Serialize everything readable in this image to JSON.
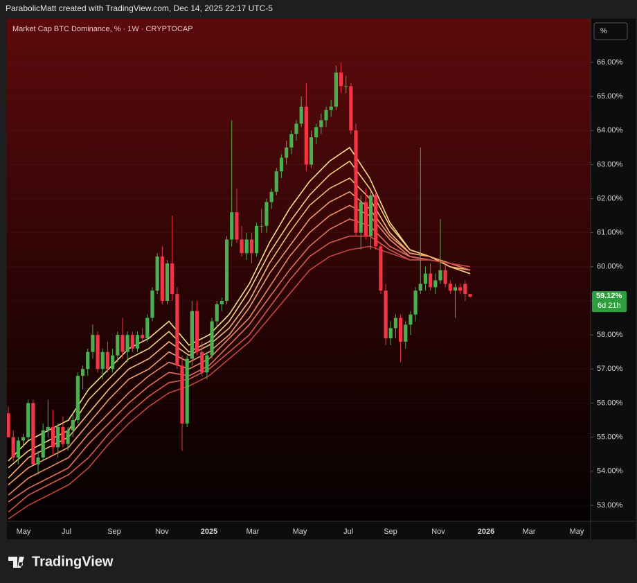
{
  "header": "ParabolicMatt created with TradingView.com, Dec 14, 2025 22:17 UTC-5",
  "footer_brand": "TradingView",
  "chart_data": {
    "type": "candlestick",
    "title": "Market Cap BTC Dominance, % · 1W · CRYPTOCAP",
    "scale_button": "%",
    "ylim": [
      52.53,
      67.28
    ],
    "yticks": [
      {
        "value": 53,
        "label": "53.00%"
      },
      {
        "value": 54,
        "label": "54.00%"
      },
      {
        "value": 55,
        "label": "55.00%"
      },
      {
        "value": 56,
        "label": "56.00%"
      },
      {
        "value": 57,
        "label": "57.00%"
      },
      {
        "value": 58,
        "label": "58.00%"
      },
      {
        "value": 59,
        "label": "59.00%"
      },
      {
        "value": 60,
        "label": "60.00%"
      },
      {
        "value": 61,
        "label": "61.00%"
      },
      {
        "value": 62,
        "label": "62.00%"
      },
      {
        "value": 63,
        "label": "63.00%"
      },
      {
        "value": 64,
        "label": "64.00%"
      },
      {
        "value": 65,
        "label": "65.00%"
      },
      {
        "value": 66,
        "label": "66.00%"
      }
    ],
    "xticks": [
      "May",
      "Jul",
      "Sep",
      "Nov",
      "2025",
      "Mar",
      "May",
      "Jul",
      "Sep",
      "Nov",
      "2026",
      "Mar",
      "May"
    ],
    "grid": true,
    "up_color": "#4caf50",
    "down_color": "#f23645",
    "last_price": {
      "value": 59.12,
      "label": "59.12%"
    },
    "countdown": "6d 21h",
    "open": [
      55.7,
      55.0,
      54.4,
      54.9,
      55.0,
      56.0,
      54.2,
      54.4,
      55.2,
      55.3,
      54.7,
      55.3,
      54.8,
      55.2,
      55.5,
      56.8,
      57.0,
      57.5,
      58.0,
      57.0,
      57.5,
      57.0,
      57.4,
      58.0,
      57.5,
      58.0,
      57.6,
      58.0,
      57.9,
      58.5,
      59.3,
      60.3,
      59.0,
      60.1,
      59.2,
      57.1,
      55.4,
      57.3,
      58.7,
      57.5,
      56.9,
      57.4,
      58.4,
      58.9,
      59.0,
      60.8,
      61.6,
      60.8,
      60.4,
      60.8,
      60.4,
      61.2,
      61.2,
      61.9,
      62.2,
      62.8,
      63.2,
      63.5,
      63.9,
      64.2,
      64.7,
      63.0,
      63.8,
      64.1,
      64.3,
      64.6,
      64.7,
      65.7,
      65.3,
      65.3,
      64.0,
      61.0,
      61.9,
      60.9,
      62.1,
      60.6,
      59.3,
      57.9,
      58.2,
      58.5,
      57.8,
      58.3,
      58.6,
      59.3,
      59.5,
      59.8,
      59.4,
      59.6,
      59.9,
      59.5,
      59.3,
      59.4,
      59.5,
      59.2
    ],
    "high": [
      55.9,
      55.2,
      55.0,
      55.1,
      56.1,
      56.1,
      54.6,
      55.4,
      56.1,
      55.8,
      55.4,
      55.6,
      55.3,
      55.7,
      56.9,
      57.1,
      57.6,
      58.3,
      58.1,
      57.6,
      57.8,
      57.6,
      58.1,
      58.5,
      58.1,
      58.1,
      58.1,
      58.2,
      58.6,
      59.4,
      60.4,
      60.6,
      60.2,
      61.5,
      59.4,
      57.4,
      57.4,
      59.0,
      59.0,
      57.8,
      57.5,
      58.5,
      59.0,
      59.1,
      60.9,
      64.3,
      62.3,
      61.2,
      61.0,
      61.0,
      61.3,
      61.7,
      62.0,
      62.3,
      62.9,
      63.3,
      63.7,
      64.0,
      64.3,
      65.0,
      65.4,
      64.0,
      64.2,
      64.5,
      64.7,
      64.9,
      65.9,
      66.0,
      65.6,
      65.4,
      64.2,
      62.1,
      62.3,
      62.2,
      62.2,
      60.7,
      59.5,
      58.4,
      58.6,
      58.6,
      58.4,
      58.7,
      59.4,
      63.5,
      60.0,
      60.1,
      59.8,
      61.4,
      60.1,
      59.6,
      59.5,
      59.5,
      59.6,
      59.2
    ],
    "low": [
      55.0,
      54.3,
      54.2,
      54.7,
      54.9,
      54.2,
      53.9,
      54.3,
      55.0,
      54.5,
      54.4,
      54.7,
      54.6,
      55.0,
      55.4,
      56.4,
      56.8,
      57.3,
      56.9,
      56.7,
      56.9,
      56.9,
      57.2,
      57.3,
      57.2,
      57.5,
      57.5,
      57.8,
      57.8,
      58.4,
      59.2,
      58.9,
      58.9,
      59.0,
      57.0,
      54.6,
      55.3,
      57.1,
      57.4,
      56.8,
      56.7,
      57.3,
      58.2,
      58.7,
      58.9,
      60.6,
      60.7,
      60.3,
      60.2,
      60.1,
      60.3,
      61.0,
      61.0,
      61.7,
      62.1,
      62.6,
      63.0,
      63.3,
      63.7,
      64.1,
      62.8,
      62.9,
      63.6,
      63.9,
      64.1,
      64.4,
      64.6,
      65.1,
      65.1,
      63.9,
      60.9,
      60.5,
      60.8,
      60.5,
      60.5,
      59.2,
      57.7,
      57.7,
      57.9,
      57.2,
      57.6,
      58.0,
      58.4,
      59.2,
      59.3,
      59.3,
      59.2,
      59.5,
      59.4,
      59.2,
      58.5,
      59.2,
      59.0,
      59.1
    ],
    "close": [
      55.0,
      54.4,
      54.9,
      55.0,
      56.0,
      54.2,
      54.4,
      55.2,
      55.3,
      54.7,
      55.3,
      54.8,
      55.2,
      55.5,
      56.8,
      57.0,
      57.5,
      58.0,
      57.0,
      57.5,
      57.0,
      57.4,
      58.0,
      57.5,
      58.0,
      57.6,
      58.0,
      57.9,
      58.5,
      59.3,
      60.3,
      59.0,
      60.1,
      59.2,
      57.1,
      55.4,
      57.3,
      58.7,
      57.5,
      56.9,
      57.4,
      58.4,
      58.9,
      59.0,
      60.8,
      61.6,
      60.8,
      60.4,
      60.8,
      60.4,
      61.2,
      61.2,
      61.9,
      62.2,
      62.8,
      63.2,
      63.5,
      63.9,
      64.2,
      64.7,
      63.0,
      63.8,
      64.1,
      64.3,
      64.6,
      64.7,
      65.7,
      65.3,
      65.3,
      64.0,
      61.0,
      61.9,
      60.9,
      62.1,
      60.6,
      59.3,
      57.9,
      58.2,
      58.5,
      57.8,
      58.3,
      58.6,
      59.3,
      59.5,
      59.8,
      59.4,
      59.6,
      59.9,
      59.5,
      59.3,
      59.4,
      59.3,
      59.2,
      59.12
    ],
    "ribbon": [
      {
        "color": "#f7e08c",
        "values": [
          54.3,
          54.9,
          55.2,
          55.5,
          56.4,
          57.0,
          57.6,
          57.9,
          58.4,
          57.7,
          58.0,
          58.6,
          59.5,
          60.7,
          61.7,
          62.5,
          63.1,
          63.5,
          62.6,
          61.3,
          60.5,
          60.3,
          60.0,
          59.8
        ]
      },
      {
        "color": "#f7d080",
        "values": [
          54.1,
          54.6,
          54.9,
          55.2,
          56.1,
          56.7,
          57.3,
          57.6,
          58.1,
          57.5,
          57.8,
          58.4,
          59.3,
          60.4,
          61.3,
          62.1,
          62.7,
          63.1,
          62.3,
          61.2,
          60.5,
          60.3,
          60.0,
          59.8
        ]
      },
      {
        "color": "#f5b978",
        "values": [
          53.8,
          54.4,
          54.7,
          55.0,
          55.7,
          56.4,
          57.0,
          57.3,
          57.8,
          57.4,
          57.7,
          58.2,
          59.0,
          60.1,
          61.0,
          61.8,
          62.3,
          62.6,
          62.0,
          61.0,
          60.4,
          60.3,
          60.0,
          59.9
        ]
      },
      {
        "color": "#f2a070",
        "values": [
          53.6,
          54.1,
          54.4,
          54.7,
          55.4,
          56.1,
          56.7,
          57.0,
          57.5,
          57.2,
          57.5,
          58.0,
          58.8,
          59.8,
          60.6,
          61.4,
          61.9,
          62.2,
          61.7,
          60.9,
          60.4,
          60.3,
          60.1,
          59.9
        ]
      },
      {
        "color": "#ec8868",
        "values": [
          53.3,
          53.8,
          54.1,
          54.4,
          55.1,
          55.7,
          56.3,
          56.8,
          57.2,
          57.0,
          57.3,
          57.9,
          58.5,
          59.4,
          60.3,
          61.0,
          61.5,
          61.8,
          61.5,
          60.8,
          60.3,
          60.2,
          60.1,
          59.9
        ]
      },
      {
        "color": "#e2705e",
        "values": [
          53.1,
          53.5,
          53.8,
          54.1,
          54.8,
          55.4,
          56.0,
          56.5,
          56.9,
          56.8,
          57.1,
          57.7,
          58.3,
          59.1,
          59.9,
          60.6,
          61.1,
          61.4,
          61.2,
          60.6,
          60.3,
          60.2,
          60.1,
          59.9
        ]
      },
      {
        "color": "#d65a50",
        "values": [
          52.8,
          53.3,
          53.6,
          53.9,
          54.4,
          55.1,
          55.7,
          56.2,
          56.6,
          56.7,
          57.0,
          57.5,
          58.0,
          58.8,
          59.6,
          60.3,
          60.7,
          60.9,
          60.9,
          60.5,
          60.2,
          60.2,
          60.1,
          60.0
        ]
      },
      {
        "color": "#c44440",
        "values": [
          52.6,
          53.0,
          53.3,
          53.6,
          54.1,
          54.8,
          55.4,
          55.9,
          56.3,
          56.5,
          56.8,
          57.3,
          57.8,
          58.5,
          59.2,
          59.9,
          60.3,
          60.5,
          60.6,
          60.4,
          60.2,
          60.2,
          60.1,
          60.0
        ]
      }
    ]
  }
}
